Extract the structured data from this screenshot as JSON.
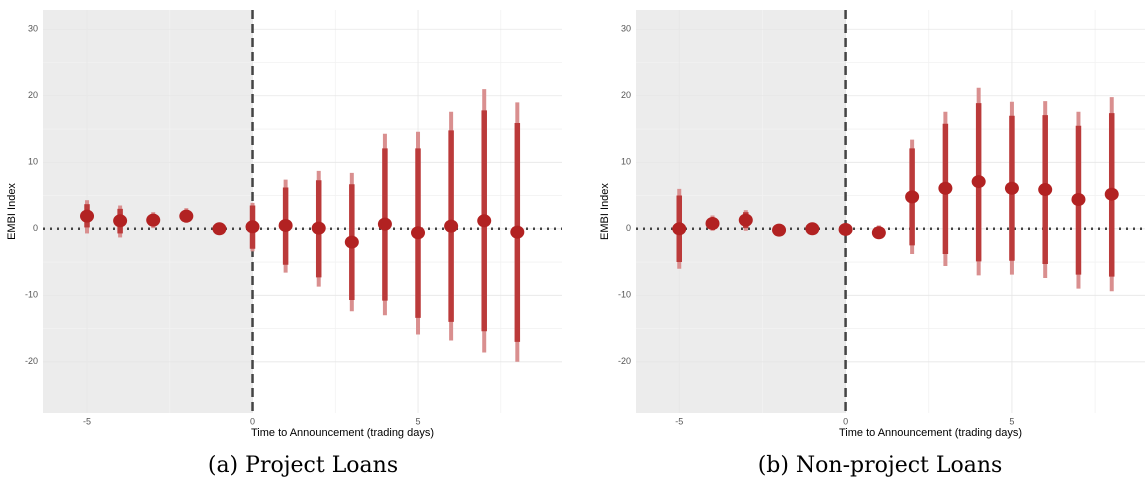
{
  "chart_data": [
    {
      "type": "coefplot",
      "caption": "(a) Project Loans",
      "xlabel": "Time to Announcement (trading days)",
      "ylabel": "EMBI Index",
      "xlim": [
        -6.33,
        9.35
      ],
      "ylim": [
        -27.7,
        32.9
      ],
      "xticks": [
        -5,
        0,
        5
      ],
      "yticks": [
        -20,
        -10,
        0,
        10,
        20,
        30
      ],
      "grid": true,
      "ref_x": 0,
      "ref_y": 0,
      "outer_color": "#d98f8f",
      "inner_color": "#bb3a3a",
      "point_color": "#b22222",
      "shade_color": "#ececec",
      "x": [
        -5,
        -4,
        -3,
        -2,
        -1,
        0,
        1,
        2,
        3,
        4,
        5,
        6,
        7,
        8
      ],
      "values": [
        1.9,
        1.2,
        1.3,
        1.9,
        0.0,
        0.3,
        0.5,
        0.1,
        -2.0,
        0.7,
        -0.6,
        0.4,
        1.2,
        -0.5
      ],
      "outer_low": [
        -0.7,
        -1.3,
        0.1,
        0.9,
        -0.4,
        -3.4,
        -6.6,
        -8.7,
        -12.4,
        -13.0,
        -15.9,
        -16.8,
        -18.6,
        -20.0
      ],
      "outer_high": [
        4.3,
        3.5,
        2.5,
        3.1,
        0.4,
        3.9,
        7.4,
        8.7,
        8.4,
        14.3,
        14.6,
        17.6,
        21.0,
        19.0
      ],
      "inner_low": [
        0.2,
        -0.7,
        0.4,
        1.1,
        -0.3,
        -3.0,
        -5.4,
        -7.3,
        -10.7,
        -10.8,
        -13.4,
        -14.0,
        -15.4,
        -17.0
      ],
      "inner_high": [
        3.7,
        3.0,
        2.2,
        2.8,
        0.3,
        3.5,
        6.2,
        7.3,
        6.7,
        12.1,
        12.1,
        14.8,
        17.8,
        15.9
      ]
    },
    {
      "type": "coefplot",
      "caption": "(b) Non-project Loans",
      "xlabel": "Time to Announcement (trading days)",
      "ylabel": "EMBI Index",
      "xlim": [
        -6.3,
        9.0
      ],
      "ylim": [
        -27.7,
        32.9
      ],
      "xticks": [
        -5,
        0,
        5
      ],
      "yticks": [
        -20,
        -10,
        0,
        10,
        20,
        30
      ],
      "grid": true,
      "ref_x": 0,
      "ref_y": 0,
      "outer_color": "#d98f8f",
      "inner_color": "#bb3a3a",
      "point_color": "#b22222",
      "shade_color": "#ececec",
      "x": [
        -5,
        -4,
        -3,
        -2,
        -1,
        0,
        1,
        2,
        3,
        4,
        5,
        6,
        7,
        8
      ],
      "values": [
        0.0,
        0.8,
        1.3,
        -0.2,
        0.0,
        -0.1,
        -0.6,
        4.8,
        6.1,
        7.1,
        6.1,
        5.9,
        4.4,
        5.2
      ],
      "outer_low": [
        -6.0,
        -0.3,
        -0.3,
        -0.5,
        -0.3,
        -0.4,
        -1.5,
        -3.8,
        -5.6,
        -7.0,
        -6.9,
        -7.4,
        -9.0,
        -9.4
      ],
      "outer_high": [
        6.0,
        2.0,
        2.8,
        0.1,
        0.3,
        0.2,
        0.5,
        13.4,
        17.6,
        21.2,
        19.1,
        19.2,
        17.6,
        19.8
      ],
      "inner_low": [
        -5.0,
        0.0,
        0.1,
        -0.4,
        -0.2,
        -0.3,
        -1.3,
        -2.5,
        -3.8,
        -4.9,
        -4.8,
        -5.3,
        -6.9,
        -7.2
      ],
      "inner_high": [
        5.0,
        1.7,
        2.5,
        0.0,
        0.2,
        0.1,
        0.2,
        12.1,
        15.8,
        18.9,
        17.0,
        17.1,
        15.5,
        17.4
      ]
    }
  ]
}
